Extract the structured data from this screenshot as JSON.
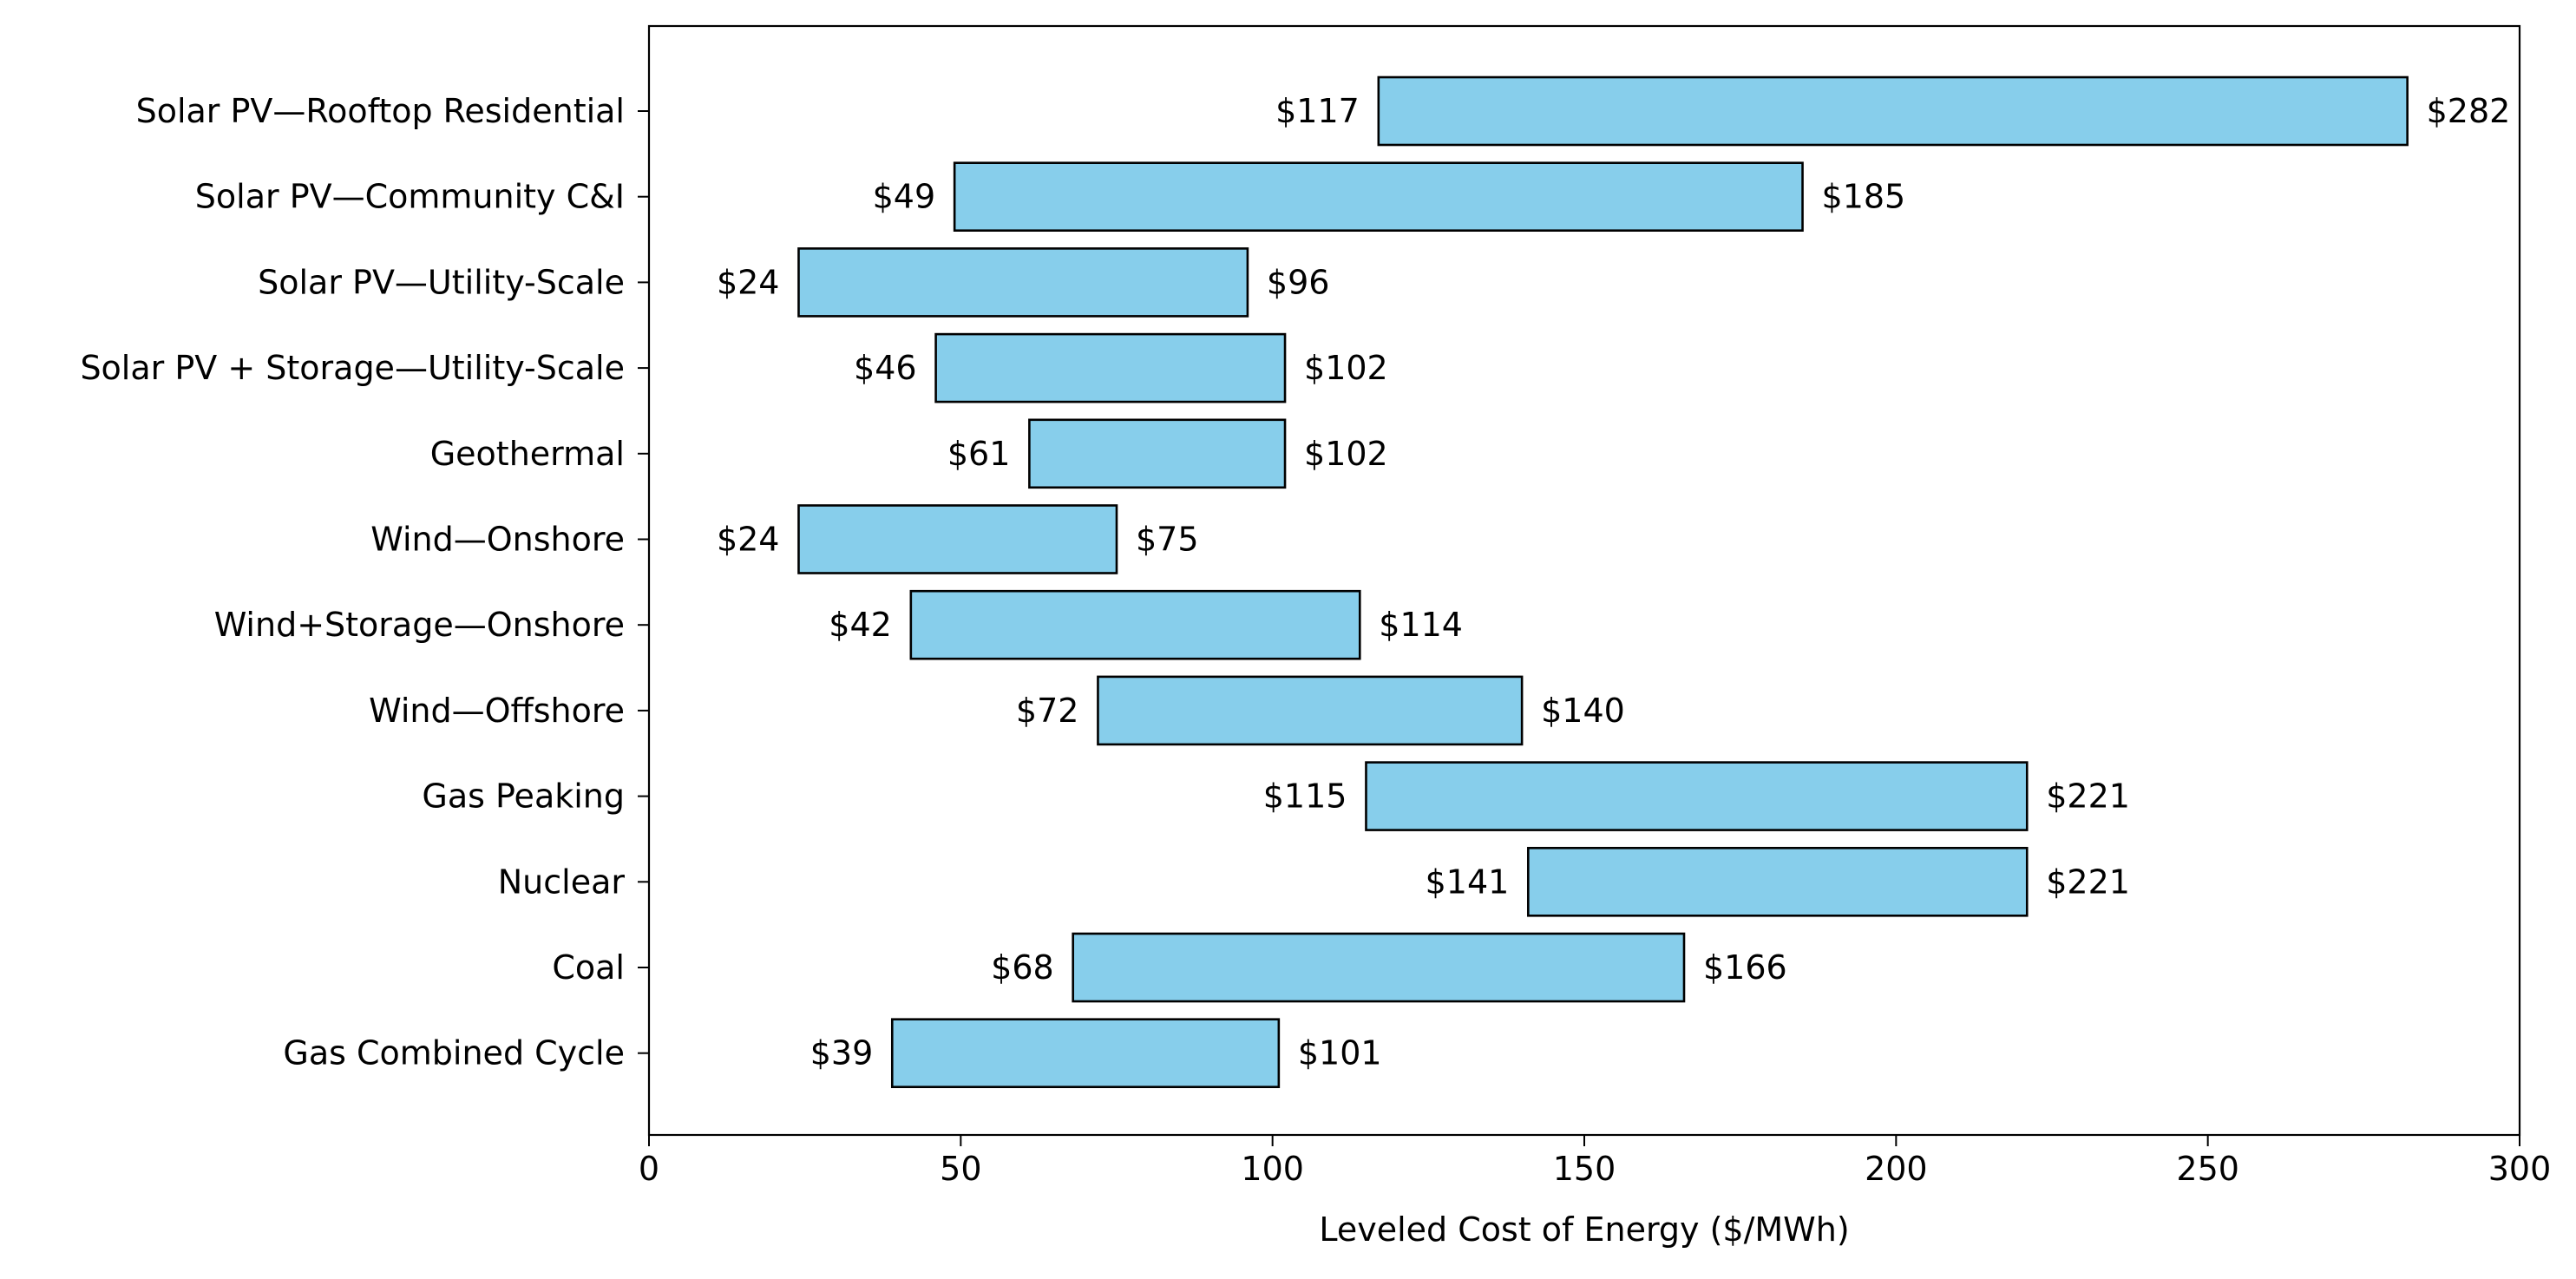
{
  "chart_data": {
    "type": "bar",
    "orientation": "horizontal",
    "style": "floating range bars",
    "title": "",
    "xlabel": "Leveled Cost of Energy ($/MWh)",
    "ylabel": "",
    "xlim": [
      0,
      300
    ],
    "xticks": [
      0,
      50,
      100,
      150,
      200,
      250,
      300
    ],
    "grid": false,
    "legend": "none",
    "bar_color": "#87CEEB",
    "bar_edge_color": "#000000",
    "categories": [
      "Solar PV—Rooftop Residential",
      "Solar PV—Community C&I",
      "Solar PV—Utility-Scale",
      "Solar PV + Storage—Utility-Scale",
      "Geothermal",
      "Wind—Onshore",
      "Wind+Storage—Onshore",
      "Wind—Offshore",
      "Gas Peaking",
      "Nuclear",
      "Coal",
      "Gas Combined Cycle"
    ],
    "low": [
      117,
      49,
      24,
      46,
      61,
      24,
      42,
      72,
      115,
      141,
      68,
      39
    ],
    "high": [
      282,
      185,
      96,
      102,
      102,
      75,
      114,
      140,
      221,
      221,
      166,
      101
    ],
    "low_labels": [
      "$117",
      "$49",
      "$24",
      "$46",
      "$61",
      "$24",
      "$42",
      "$72",
      "$115",
      "$141",
      "$68",
      "$39"
    ],
    "high_labels": [
      "$282",
      "$185",
      "$96",
      "$102",
      "$102",
      "$75",
      "$114",
      "$140",
      "$221",
      "$221",
      "$166",
      "$101"
    ]
  }
}
